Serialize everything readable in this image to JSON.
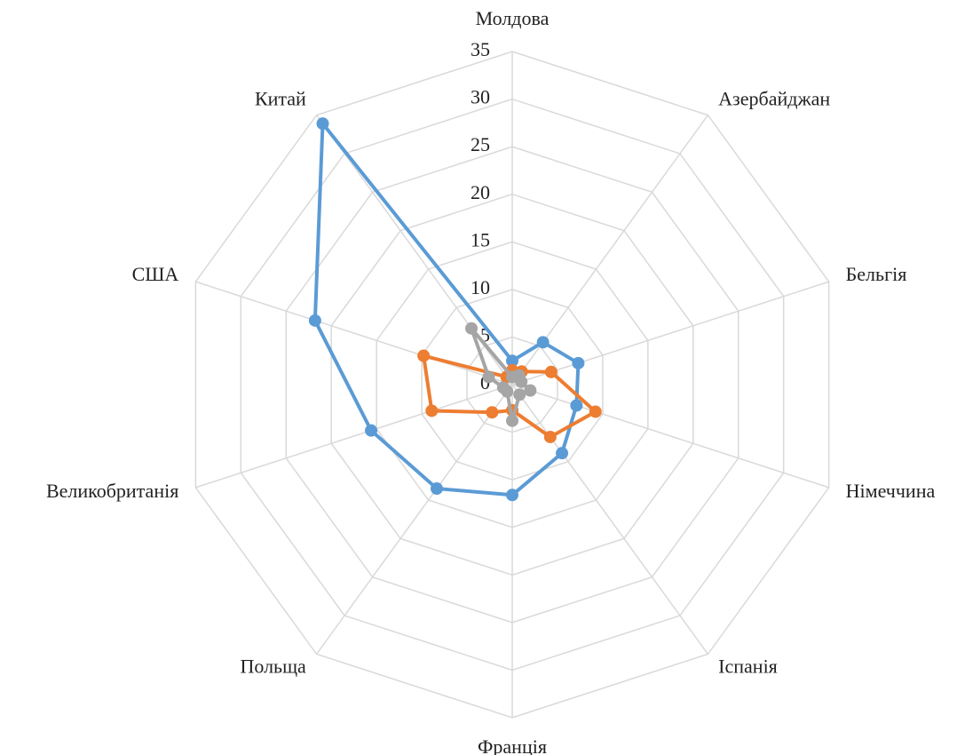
{
  "chart_data": {
    "type": "radar",
    "categories": [
      "Молдова",
      "Азербайджан",
      "Бельгія",
      "Німеччина",
      "Іспанія",
      "Франція",
      "Польща",
      "Великобританія",
      "США",
      "Китай"
    ],
    "series": [
      {
        "color": "#5b9bd5",
        "values": [
          2.5,
          5.5,
          7.3,
          7.1,
          8.9,
          11.6,
          13.5,
          15.6,
          21.8,
          33.9
        ]
      },
      {
        "color": "#ed7d31",
        "values": [
          1.5,
          1.7,
          4.3,
          9.2,
          6.8,
          2.7,
          3.6,
          8.9,
          9.8,
          1
        ]
      },
      {
        "color": "#a5a5a5",
        "values": [
          0.8,
          1.2,
          1,
          2,
          1.3,
          3.8,
          0.9,
          1,
          2.6,
          7.3
        ]
      }
    ],
    "rlim": [
      0,
      35
    ],
    "rticks": [
      0,
      5,
      10,
      15,
      20,
      25,
      30,
      35
    ],
    "grid": true
  }
}
